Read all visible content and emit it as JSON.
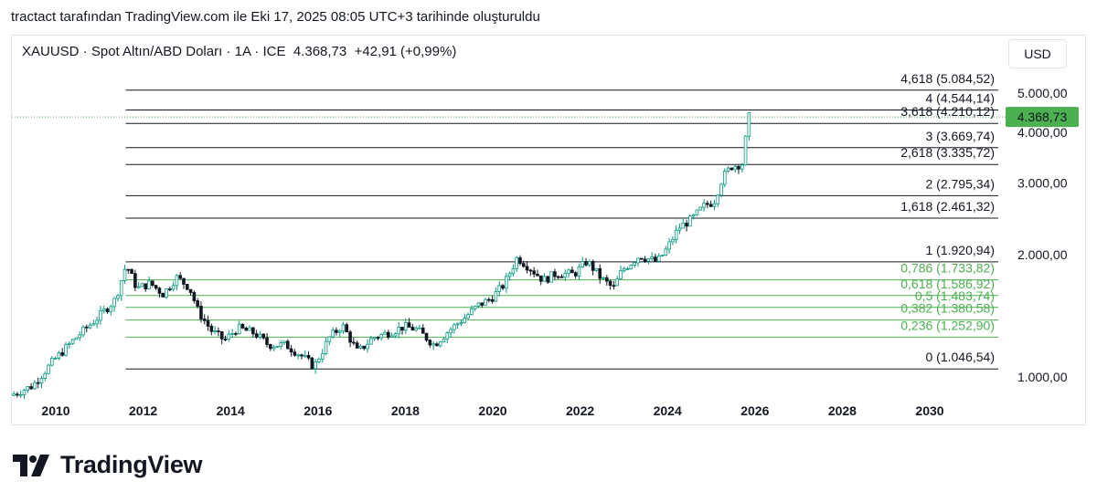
{
  "caption": "tractact tarafından TradingView.com ile Eki 17, 2025 08:05 UTC+3 tarihinde oluşturuldu",
  "header": {
    "symbol": "XAUUSD",
    "description": "Spot Altın/ABD Doları",
    "interval": "1A",
    "exchange": "ICE",
    "separator": " · ",
    "last": "4.368,73",
    "change": "+42,91",
    "change_pct": "(+0,99%)"
  },
  "currency_button": "USD",
  "brand": "TradingView",
  "colors": {
    "up": "#089981",
    "down": "#131722",
    "fib_main": "#131722",
    "fib_green": "#4caf50",
    "price_badge": "#4caf50",
    "grid_border": "#e0e3eb"
  },
  "chart_data": {
    "type": "candlestick",
    "y_scale": "log",
    "ylim": [
      850,
      5800
    ],
    "xlim": [
      2009.0,
      2031.5
    ],
    "y_ticks": [
      {
        "value": 1000,
        "label": "1.000,00"
      },
      {
        "value": 2000,
        "label": "2.000,00"
      },
      {
        "value": 3000,
        "label": "3.000,00"
      },
      {
        "value": 4000,
        "label": "4.000,00"
      },
      {
        "value": 5000,
        "label": "5.000,00"
      }
    ],
    "x_ticks": [
      {
        "value": 2010,
        "label": "2010"
      },
      {
        "value": 2012,
        "label": "2012"
      },
      {
        "value": 2014,
        "label": "2014"
      },
      {
        "value": 2016,
        "label": "2016"
      },
      {
        "value": 2018,
        "label": "2018"
      },
      {
        "value": 2020,
        "label": "2020"
      },
      {
        "value": 2022,
        "label": "2022"
      },
      {
        "value": 2024,
        "label": "2024"
      },
      {
        "value": 2026,
        "label": "2026"
      },
      {
        "value": 2028,
        "label": "2028"
      },
      {
        "value": 2030,
        "label": "2030"
      }
    ],
    "last_price": {
      "value": 4368.73,
      "label": "4.368,73"
    },
    "fib_start_x": 2011.6,
    "fib_levels": [
      {
        "level": "4,618",
        "price": 5084.52,
        "label": "4,618 (5.084,52)",
        "style": "main"
      },
      {
        "level": "4",
        "price": 4544.14,
        "label": "4 (4.544,14)",
        "style": "main"
      },
      {
        "level": "3,618",
        "price": 4210.12,
        "label": "3,618 (4.210,12)",
        "style": "main"
      },
      {
        "level": "3",
        "price": 3669.74,
        "label": "3 (3.669,74)",
        "style": "main"
      },
      {
        "level": "2,618",
        "price": 3335.72,
        "label": "2,618 (3.335,72)",
        "style": "main"
      },
      {
        "level": "2",
        "price": 2795.34,
        "label": "2 (2.795,34)",
        "style": "main"
      },
      {
        "level": "1,618",
        "price": 2461.32,
        "label": "1,618 (2.461,32)",
        "style": "main"
      },
      {
        "level": "1",
        "price": 1920.94,
        "label": "1 (1.920,94)",
        "style": "main"
      },
      {
        "level": "0,786",
        "price": 1733.82,
        "label": "0,786 (1.733,82)",
        "style": "green"
      },
      {
        "level": "0,618",
        "price": 1586.92,
        "label": "0,618 (1.586,92)",
        "style": "green"
      },
      {
        "level": "0,5",
        "price": 1483.74,
        "label": "0,5 (1.483,74)",
        "style": "green"
      },
      {
        "level": "0,382",
        "price": 1380.58,
        "label": "0,382 (1.380,58)",
        "style": "green"
      },
      {
        "level": "0,236",
        "price": 1252.9,
        "label": "0,236 (1.252,90)",
        "style": "green"
      },
      {
        "level": "0",
        "price": 1046.54,
        "label": "0 (1.046,54)",
        "style": "main"
      }
    ],
    "price_path": [
      [
        2009.0,
        900
      ],
      [
        2009.5,
        950
      ],
      [
        2010.0,
        1100
      ],
      [
        2010.5,
        1250
      ],
      [
        2011.0,
        1400
      ],
      [
        2011.4,
        1550
      ],
      [
        2011.65,
        1890
      ],
      [
        2011.9,
        1650
      ],
      [
        2012.2,
        1700
      ],
      [
        2012.5,
        1600
      ],
      [
        2012.8,
        1760
      ],
      [
        2013.1,
        1660
      ],
      [
        2013.3,
        1450
      ],
      [
        2013.6,
        1300
      ],
      [
        2013.9,
        1230
      ],
      [
        2014.2,
        1320
      ],
      [
        2014.6,
        1280
      ],
      [
        2014.9,
        1200
      ],
      [
        2015.3,
        1200
      ],
      [
        2015.7,
        1120
      ],
      [
        2015.95,
        1060
      ],
      [
        2016.3,
        1250
      ],
      [
        2016.6,
        1340
      ],
      [
        2016.95,
        1150
      ],
      [
        2017.3,
        1250
      ],
      [
        2017.7,
        1290
      ],
      [
        2018.0,
        1330
      ],
      [
        2018.3,
        1310
      ],
      [
        2018.7,
        1200
      ],
      [
        2019.0,
        1290
      ],
      [
        2019.4,
        1400
      ],
      [
        2019.7,
        1500
      ],
      [
        2020.0,
        1560
      ],
      [
        2020.3,
        1690
      ],
      [
        2020.6,
        1970
      ],
      [
        2020.9,
        1850
      ],
      [
        2021.2,
        1730
      ],
      [
        2021.5,
        1800
      ],
      [
        2021.9,
        1790
      ],
      [
        2022.2,
        1930
      ],
      [
        2022.5,
        1760
      ],
      [
        2022.8,
        1650
      ],
      [
        2023.0,
        1830
      ],
      [
        2023.4,
        1990
      ],
      [
        2023.8,
        1920
      ],
      [
        2024.0,
        2050
      ],
      [
        2024.3,
        2330
      ],
      [
        2024.6,
        2450
      ],
      [
        2024.9,
        2650
      ],
      [
        2025.1,
        2700
      ],
      [
        2025.3,
        3100
      ],
      [
        2025.5,
        3300
      ],
      [
        2025.75,
        3350
      ],
      [
        2025.8,
        3600
      ],
      [
        2025.85,
        4100
      ],
      [
        2025.88,
        4368.73
      ]
    ]
  }
}
